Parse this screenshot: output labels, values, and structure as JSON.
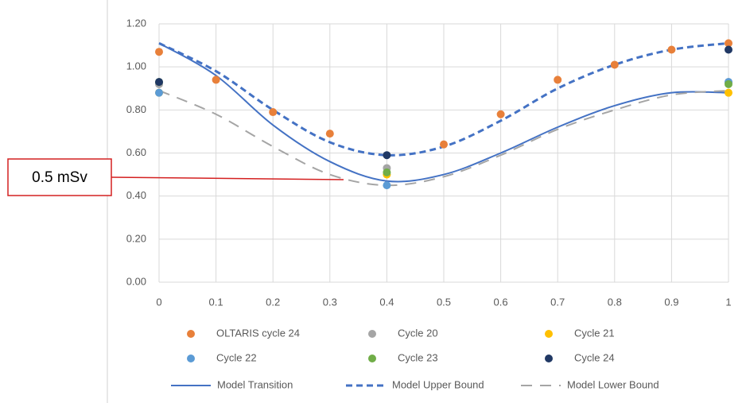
{
  "chart_data": {
    "type": "scatter",
    "annotation": "0.5 mSv",
    "xlim": [
      0,
      1
    ],
    "xticks": [
      0,
      0.1,
      0.2,
      0.3,
      0.4,
      0.5,
      0.6,
      0.7,
      0.8,
      0.9,
      1
    ],
    "ylim": [
      0,
      1.2
    ],
    "yticks": [
      {
        "value": 0,
        "label": "0.00"
      },
      {
        "value": 0.2,
        "label": "0.20"
      },
      {
        "value": 0.4,
        "label": "0.40"
      },
      {
        "value": 0.6,
        "label": "0.60"
      },
      {
        "value": 0.8,
        "label": "0.80"
      },
      {
        "value": 1,
        "label": "1.00"
      },
      {
        "value": 1.2,
        "label": "1.20"
      }
    ],
    "grid": true,
    "legend": "bottom",
    "series": [
      {
        "name": "OLTARIS cycle 24",
        "color": "#e8803a",
        "style": "marker",
        "x": [
          0,
          0.1,
          0.2,
          0.3,
          0.5,
          0.6,
          0.7,
          0.8,
          0.9,
          1
        ],
        "values": [
          1.07,
          0.94,
          0.79,
          0.69,
          0.64,
          0.78,
          0.94,
          1.01,
          1.08,
          1.11
        ]
      },
      {
        "name": "Cycle 20",
        "color": "#a5a5a5",
        "style": "marker",
        "x": [
          0,
          0.4,
          1
        ],
        "values": [
          0.92,
          0.53,
          0.93
        ]
      },
      {
        "name": "Cycle 21",
        "color": "#ffc000",
        "style": "marker",
        "x": [
          0,
          0.4,
          1
        ],
        "values": [
          0.88,
          0.5,
          0.88
        ]
      },
      {
        "name": "Cycle 22",
        "color": "#5b9bd5",
        "style": "marker",
        "x": [
          0,
          0.4,
          1
        ],
        "values": [
          0.88,
          0.45,
          0.93
        ]
      },
      {
        "name": "Cycle 23",
        "color": "#70ad47",
        "style": "marker",
        "x": [
          0,
          0.4,
          1
        ],
        "values": [
          0.93,
          0.51,
          0.92
        ]
      },
      {
        "name": "Cycle 24",
        "color": "#203864",
        "style": "marker",
        "x": [
          0,
          0.4,
          1
        ],
        "values": [
          0.93,
          0.59,
          1.08
        ]
      },
      {
        "name": "Model Transition",
        "color": "#4472c4",
        "style": "solid",
        "x": [
          0,
          0.1,
          0.2,
          0.3,
          0.4,
          0.5,
          0.6,
          0.7,
          0.8,
          0.9,
          1
        ],
        "values": [
          1.11,
          0.96,
          0.73,
          0.56,
          0.47,
          0.5,
          0.6,
          0.72,
          0.82,
          0.88,
          0.88
        ]
      },
      {
        "name": "Model Upper Bound",
        "color": "#4472c4",
        "style": "dashed",
        "x": [
          0,
          0.1,
          0.2,
          0.3,
          0.4,
          0.5,
          0.6,
          0.7,
          0.8,
          0.9,
          1
        ],
        "values": [
          1.11,
          0.98,
          0.8,
          0.65,
          0.59,
          0.63,
          0.75,
          0.9,
          1.01,
          1.08,
          1.11
        ]
      },
      {
        "name": "Model Lower Bound",
        "color": "#a5a5a5",
        "style": "long-dashed",
        "x": [
          0,
          0.1,
          0.2,
          0.3,
          0.4,
          0.5,
          0.6,
          0.7,
          0.8,
          0.9,
          1
        ],
        "values": [
          0.89,
          0.78,
          0.63,
          0.5,
          0.45,
          0.49,
          0.59,
          0.71,
          0.8,
          0.87,
          0.89
        ]
      }
    ]
  }
}
